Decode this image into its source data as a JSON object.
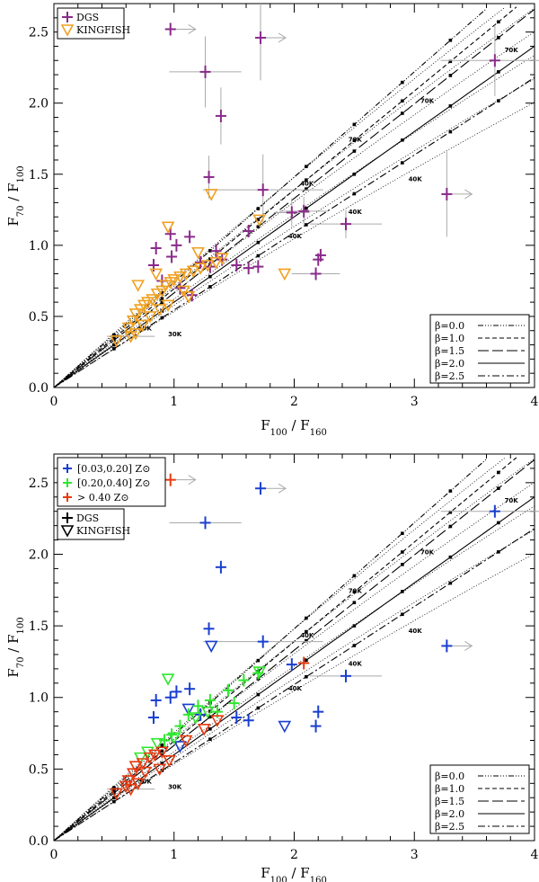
{
  "colors": {
    "dgs": "#8a2a8a",
    "kingfish": "#f0a020",
    "bin_low": "#1a3fd0",
    "bin_mid": "#2ee82e",
    "bin_high": "#e83a10",
    "error_bar": "#aaaaaa",
    "axis": "#000000"
  },
  "chart_data": [
    {
      "type": "scatter",
      "panel": "top",
      "xlabel": "F100 / F160",
      "ylabel": "F70 / F100",
      "xlim": [
        0,
        4
      ],
      "ylim": [
        0,
        2.7
      ],
      "x_ticks": [
        "0",
        "1",
        "2",
        "3",
        "4"
      ],
      "y_ticks": [
        "0.0",
        "0.5",
        "1.0",
        "1.5",
        "2.0",
        "2.5"
      ],
      "legend_markers": [
        {
          "label": "DGS",
          "symbol": "plus",
          "color": "#8a2a8a"
        },
        {
          "label": "KINGFISH",
          "symbol": "triangle-down",
          "color": "#f0a020"
        }
      ],
      "model_legend": [
        {
          "label": "β=0.0",
          "style": "dash-dot-dot-dot"
        },
        {
          "label": "β=1.0",
          "style": "short-dash"
        },
        {
          "label": "β=1.5",
          "style": "long-dash"
        },
        {
          "label": "β=2.0",
          "style": "solid"
        },
        {
          "label": "β=2.5",
          "style": "dash-dot"
        }
      ],
      "temperature_labels": [
        "70K",
        "70K",
        "70K",
        "40K",
        "40K",
        "40K",
        "40K",
        "30K",
        "30K"
      ],
      "series": [
        {
          "name": "DGS",
          "points": [
            {
              "x": 0.97,
              "y": 2.52,
              "upper_limit_x": true
            },
            {
              "x": 1.26,
              "y": 2.22,
              "xerr": 0.3,
              "yerr": 0.25
            },
            {
              "x": 1.72,
              "y": 2.46,
              "upper_limit_x": true,
              "yerr": 0.3
            },
            {
              "x": 1.39,
              "y": 1.91,
              "yerr": 0.2
            },
            {
              "x": 3.67,
              "y": 2.3,
              "xerr": 0.45,
              "yerr": 0.25
            },
            {
              "x": 1.29,
              "y": 1.48,
              "yerr": 0.15
            },
            {
              "x": 1.74,
              "y": 1.39,
              "xerr": 0.5,
              "yerr": 0.25
            },
            {
              "x": 3.27,
              "y": 1.36,
              "upper_limit_x": true,
              "yerr": 0.3
            },
            {
              "x": 1.98,
              "y": 1.23,
              "xerr": 0.15,
              "yerr": 0.1
            },
            {
              "x": 2.08,
              "y": 1.24,
              "xerr": 0.2,
              "yerr": 0.1
            },
            {
              "x": 2.43,
              "y": 1.15,
              "xerr": 0.3,
              "yerr": 0.1
            },
            {
              "x": 0.85,
              "y": 0.98
            },
            {
              "x": 0.97,
              "y": 1.08
            },
            {
              "x": 1.02,
              "y": 1.0
            },
            {
              "x": 1.13,
              "y": 1.06
            },
            {
              "x": 0.98,
              "y": 0.92
            },
            {
              "x": 0.83,
              "y": 0.86
            },
            {
              "x": 1.22,
              "y": 0.88
            },
            {
              "x": 1.3,
              "y": 0.85
            },
            {
              "x": 1.52,
              "y": 0.86
            },
            {
              "x": 1.62,
              "y": 0.84
            },
            {
              "x": 1.7,
              "y": 0.85
            },
            {
              "x": 1.62,
              "y": 1.1
            },
            {
              "x": 2.18,
              "y": 0.8,
              "xerr": 0.2
            },
            {
              "x": 2.2,
              "y": 0.9
            },
            {
              "x": 2.22,
              "y": 0.93
            },
            {
              "x": 1.05,
              "y": 0.7
            },
            {
              "x": 1.15,
              "y": 0.65
            },
            {
              "x": 0.9,
              "y": 0.75
            },
            {
              "x": 1.4,
              "y": 0.9
            },
            {
              "x": 1.35,
              "y": 0.96
            }
          ]
        },
        {
          "name": "KINGFISH",
          "points": [
            {
              "x": 1.31,
              "y": 1.36
            },
            {
              "x": 0.95,
              "y": 1.13
            },
            {
              "x": 1.71,
              "y": 1.18
            },
            {
              "x": 1.92,
              "y": 0.8
            },
            {
              "x": 0.64,
              "y": 0.36,
              "xerr": 0.2
            },
            {
              "x": 0.52,
              "y": 0.33
            },
            {
              "x": 0.62,
              "y": 0.42
            },
            {
              "x": 0.66,
              "y": 0.47
            },
            {
              "x": 0.68,
              "y": 0.52
            },
            {
              "x": 0.72,
              "y": 0.55
            },
            {
              "x": 0.75,
              "y": 0.58
            },
            {
              "x": 0.78,
              "y": 0.6
            },
            {
              "x": 0.82,
              "y": 0.62
            },
            {
              "x": 0.86,
              "y": 0.66
            },
            {
              "x": 0.9,
              "y": 0.68
            },
            {
              "x": 0.93,
              "y": 0.72
            },
            {
              "x": 0.97,
              "y": 0.74
            },
            {
              "x": 1.0,
              "y": 0.76
            },
            {
              "x": 1.05,
              "y": 0.78
            },
            {
              "x": 1.1,
              "y": 0.8
            },
            {
              "x": 1.16,
              "y": 0.82
            },
            {
              "x": 1.22,
              "y": 0.84
            },
            {
              "x": 1.28,
              "y": 0.86
            },
            {
              "x": 1.35,
              "y": 0.88
            },
            {
              "x": 0.7,
              "y": 0.72
            },
            {
              "x": 0.85,
              "y": 0.8
            },
            {
              "x": 1.12,
              "y": 0.64
            },
            {
              "x": 0.8,
              "y": 0.5
            },
            {
              "x": 0.74,
              "y": 0.44
            },
            {
              "x": 0.95,
              "y": 0.58
            },
            {
              "x": 1.08,
              "y": 0.68
            },
            {
              "x": 0.68,
              "y": 0.38
            },
            {
              "x": 0.88,
              "y": 0.55
            },
            {
              "x": 1.4,
              "y": 0.91
            },
            {
              "x": 1.2,
              "y": 0.95
            }
          ]
        }
      ]
    },
    {
      "type": "scatter",
      "panel": "bottom",
      "xlabel": "F100 / F160",
      "ylabel": "F70 / F100",
      "xlim": [
        0,
        4
      ],
      "ylim": [
        0,
        2.7
      ],
      "x_ticks": [
        "0",
        "1",
        "2",
        "3",
        "4"
      ],
      "y_ticks": [
        "0.0",
        "0.5",
        "1.0",
        "1.5",
        "2.0",
        "2.5"
      ],
      "legend_metallicity": [
        {
          "label": "[0.03,0.20] Z⊙",
          "color": "#1a3fd0"
        },
        {
          "label": "[0.20,0.40] Z⊙",
          "color": "#2ee82e"
        },
        {
          "label": "> 0.40 Z⊙",
          "color": "#e83a10"
        }
      ],
      "legend_markers": [
        {
          "label": "DGS",
          "symbol": "plus",
          "color": "#000000"
        },
        {
          "label": "KINGFISH",
          "symbol": "triangle-down",
          "color": "#000000"
        }
      ],
      "model_legend": [
        {
          "label": "β=0.0",
          "style": "dash-dot-dot-dot"
        },
        {
          "label": "β=1.0",
          "style": "short-dash"
        },
        {
          "label": "β=1.5",
          "style": "long-dash"
        },
        {
          "label": "β=2.0",
          "style": "solid"
        },
        {
          "label": "β=2.5",
          "style": "dash-dot"
        }
      ],
      "temperature_labels": [
        "70K",
        "70K",
        "70K",
        "40K",
        "40K",
        "40K",
        "40K",
        "30K",
        "30K"
      ],
      "series": [
        {
          "name": "DGS [0.03,0.20] Z⊙",
          "points": [
            {
              "x": 1.26,
              "y": 2.22,
              "xerr": 0.3
            },
            {
              "x": 1.72,
              "y": 2.46,
              "upper_limit_x": true
            },
            {
              "x": 1.39,
              "y": 1.91
            },
            {
              "x": 3.67,
              "y": 2.3,
              "xerr": 0.45
            },
            {
              "x": 1.29,
              "y": 1.48
            },
            {
              "x": 1.74,
              "y": 1.39,
              "xerr": 0.5
            },
            {
              "x": 3.27,
              "y": 1.36,
              "upper_limit_x": true
            },
            {
              "x": 2.43,
              "y": 1.15,
              "xerr": 0.3
            },
            {
              "x": 1.98,
              "y": 1.23
            },
            {
              "x": 0.85,
              "y": 0.98
            },
            {
              "x": 0.97,
              "y": 1.0
            },
            {
              "x": 1.02,
              "y": 1.04
            },
            {
              "x": 1.13,
              "y": 1.06
            },
            {
              "x": 0.83,
              "y": 0.86
            },
            {
              "x": 1.22,
              "y": 0.88
            },
            {
              "x": 1.52,
              "y": 0.86
            },
            {
              "x": 1.62,
              "y": 0.84
            },
            {
              "x": 2.18,
              "y": 0.8
            },
            {
              "x": 2.2,
              "y": 0.9
            }
          ]
        },
        {
          "name": "KINGFISH [0.03,0.20] Z⊙",
          "points": [
            {
              "x": 1.31,
              "y": 1.36
            },
            {
              "x": 1.92,
              "y": 0.8
            },
            {
              "x": 1.12,
              "y": 0.92
            },
            {
              "x": 1.05,
              "y": 0.66
            }
          ]
        },
        {
          "name": "DGS [0.20,0.40] Z⊙",
          "points": [
            {
              "x": 1.7,
              "y": 1.17
            },
            {
              "x": 1.58,
              "y": 1.12
            },
            {
              "x": 1.45,
              "y": 1.05
            },
            {
              "x": 1.3,
              "y": 0.98
            },
            {
              "x": 1.2,
              "y": 0.94
            },
            {
              "x": 1.12,
              "y": 0.88
            },
            {
              "x": 1.05,
              "y": 0.8
            },
            {
              "x": 0.98,
              "y": 0.74
            },
            {
              "x": 0.92,
              "y": 0.7
            },
            {
              "x": 1.36,
              "y": 0.9
            },
            {
              "x": 1.5,
              "y": 0.96
            }
          ]
        },
        {
          "name": "KINGFISH [0.20,0.40] Z⊙",
          "points": [
            {
              "x": 0.95,
              "y": 1.13
            },
            {
              "x": 1.71,
              "y": 1.18
            },
            {
              "x": 0.86,
              "y": 0.68
            },
            {
              "x": 0.78,
              "y": 0.62
            },
            {
              "x": 0.72,
              "y": 0.58
            },
            {
              "x": 1.0,
              "y": 0.72
            },
            {
              "x": 1.18,
              "y": 0.86
            },
            {
              "x": 1.28,
              "y": 0.9
            }
          ]
        },
        {
          "name": "DGS > 0.40 Z⊙",
          "points": [
            {
              "x": 0.97,
              "y": 2.52,
              "upper_limit_x": true
            },
            {
              "x": 2.08,
              "y": 1.24
            }
          ]
        },
        {
          "name": "KINGFISH > 0.40 Z⊙",
          "points": [
            {
              "x": 0.64,
              "y": 0.36,
              "xerr": 0.2
            },
            {
              "x": 0.52,
              "y": 0.33
            },
            {
              "x": 0.62,
              "y": 0.42
            },
            {
              "x": 0.66,
              "y": 0.47
            },
            {
              "x": 0.68,
              "y": 0.52
            },
            {
              "x": 0.74,
              "y": 0.54
            },
            {
              "x": 0.8,
              "y": 0.58
            },
            {
              "x": 0.84,
              "y": 0.6
            },
            {
              "x": 0.9,
              "y": 0.62
            },
            {
              "x": 0.7,
              "y": 0.4
            },
            {
              "x": 0.76,
              "y": 0.48
            },
            {
              "x": 0.88,
              "y": 0.5
            },
            {
              "x": 0.96,
              "y": 0.56
            },
            {
              "x": 1.1,
              "y": 0.7
            },
            {
              "x": 1.25,
              "y": 0.78
            },
            {
              "x": 1.36,
              "y": 0.84
            },
            {
              "x": 0.6,
              "y": 0.38
            }
          ]
        }
      ]
    }
  ]
}
